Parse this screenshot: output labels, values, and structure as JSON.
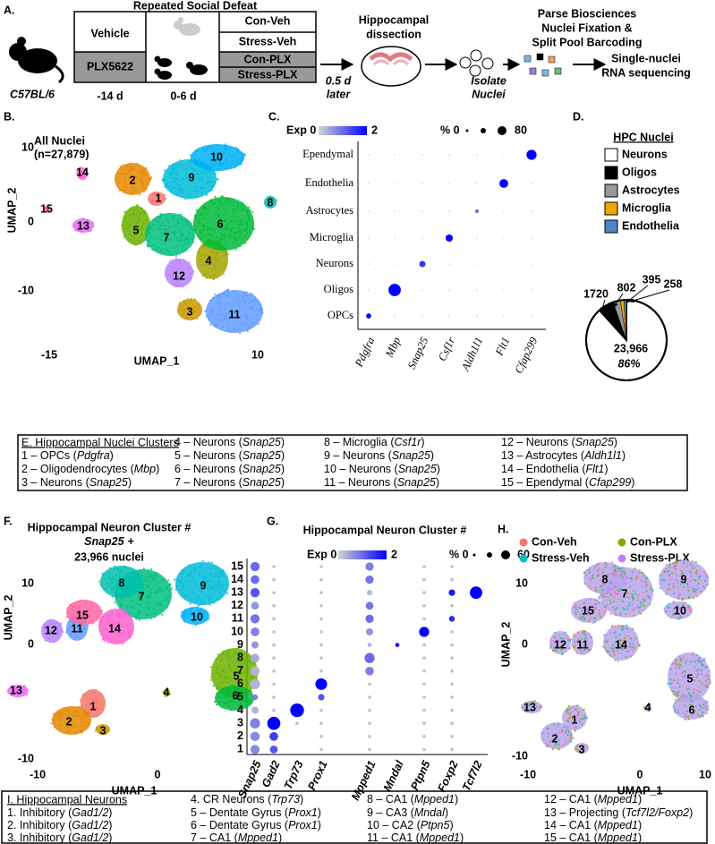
{
  "panel_a": {
    "label": "A.",
    "strain": "C57BL/6",
    "title": "Repeated Social Defeat",
    "treatments": [
      "Vehicle",
      "PLX5622"
    ],
    "groups": [
      "Con-Veh",
      "Stress-Veh",
      "Con-PLX",
      "Stress-PLX"
    ],
    "timepoints": [
      "-14 d",
      "0-6 d"
    ],
    "delay": [
      "0.5 d",
      "later"
    ],
    "dissection": [
      "Hippocampal",
      "dissection"
    ],
    "isolate": [
      "Isolate",
      "Nuclei"
    ],
    "parse": [
      "Parse Biosciences",
      "Nuclei Fixation &",
      "Split Pool Barcoding"
    ],
    "sequencing": [
      "Single-nuclei",
      "RNA sequencing"
    ]
  },
  "panel_b": {
    "label": "B.",
    "title": [
      "All Nuclei",
      "(n=27,879)"
    ],
    "x_label": "UMAP_1",
    "y_label": "UMAP_2",
    "xticks": [
      "-15",
      "10"
    ],
    "yticks": [
      "10",
      "0",
      "-10"
    ],
    "clusters": [
      "1",
      "2",
      "3",
      "4",
      "5",
      "6",
      "7",
      "8",
      "9",
      "10",
      "11",
      "12",
      "13",
      "14",
      "15"
    ]
  },
  "panel_c": {
    "label": "C.",
    "legend_exp": [
      "Exp 0",
      "2"
    ],
    "legend_pct": [
      "% 0",
      "80"
    ],
    "cell_types": [
      "Ependymal",
      "Endothelia",
      "Astrocytes",
      "Microglia",
      "Neurons",
      "Oligos",
      "OPCs"
    ],
    "genes": [
      "Pdgfra",
      "Mbp",
      "Snap25",
      "Csf1r",
      "Aldh1l1",
      "Flt1",
      "Cfap299"
    ],
    "pct": [
      10,
      60,
      15,
      20,
      5,
      30,
      40
    ],
    "exp": [
      2,
      2,
      1.5,
      2,
      1,
      2,
      2
    ]
  },
  "panel_d": {
    "label": "D.",
    "title": "HPC Nuclei",
    "categories": [
      "Neurons",
      "Oligos",
      "Astrocytes",
      "Microglia",
      "Endothelia"
    ],
    "colors": [
      "#ffffff",
      "#000000",
      "#999999",
      "#f0a800",
      "#4a86c8"
    ],
    "values": [
      23966,
      1720,
      802,
      395,
      258
    ],
    "value_labels": [
      "23,966",
      "1720",
      "802",
      "395",
      "258"
    ],
    "neuron_percent": "86%"
  },
  "panel_e": {
    "title": "E. Hippocampal Nuclei Clusters",
    "items": [
      [
        "1 – OPCs (",
        "Pdgfra",
        ")"
      ],
      [
        "2 – Oligodendrocytes (",
        "Mbp",
        ")"
      ],
      [
        "3 – Neurons (",
        "Snap25",
        ")"
      ],
      [
        "4 – Neurons (",
        "Snap25",
        ")"
      ],
      [
        "5 – Neurons (",
        "Snap25",
        ")"
      ],
      [
        "6 – Neurons (",
        "Snap25",
        ")"
      ],
      [
        "7 – Neurons (",
        "Snap25",
        ")"
      ],
      [
        "8 – Microglia (",
        "Csf1r",
        ")"
      ],
      [
        "9 – Neurons (",
        "Snap25",
        ")"
      ],
      [
        "10 – Neurons (",
        "Snap25",
        ")"
      ],
      [
        "11 – Neurons (",
        "Snap25",
        ")"
      ],
      [
        "12 – Neurons (",
        "Snap25",
        ")"
      ],
      [
        "13 – Astrocytes (",
        "Aldh1l1",
        ")"
      ],
      [
        "14 – Endothelia (",
        "Flt1",
        ")"
      ],
      [
        "15 – Ependymal (",
        "Cfap299",
        ")"
      ]
    ]
  },
  "panel_f": {
    "label": "F.",
    "title": "Hippocampal Neuron Cluster #",
    "gene": "Snap25",
    "plus": "+",
    "nuclei": "23,966 nuclei",
    "x_label": "UMAP_1",
    "y_label": "UMAP_2",
    "xticks": [
      "-10",
      "0"
    ],
    "yticks": [
      "10",
      "0",
      "-10"
    ],
    "clusters": [
      "1",
      "2",
      "3",
      "4",
      "5",
      "6",
      "7",
      "8",
      "9",
      "10",
      "11",
      "12",
      "13",
      "14",
      "15"
    ]
  },
  "panel_g": {
    "label": "G.",
    "title": "Hippocampal Neuron Cluster #",
    "legend_exp": [
      "Exp 0",
      "2"
    ],
    "legend_pct": [
      "% 0",
      "60"
    ],
    "clusters": [
      "15",
      "14",
      "13",
      "12",
      "11",
      "10",
      "9",
      "8",
      "7",
      "6",
      "5",
      "4",
      "3",
      "2",
      "1"
    ],
    "genes": [
      "Snap25",
      "Gad2",
      "Trp73",
      "Prox1",
      "Mpped1",
      "Mndal",
      "Ptpn5",
      "Foxp2",
      "Tcf7l2"
    ],
    "pct": [
      [
        25,
        3,
        0,
        3,
        20,
        0,
        3,
        3,
        0
      ],
      [
        22,
        3,
        0,
        3,
        20,
        0,
        3,
        3,
        0
      ],
      [
        25,
        3,
        0,
        3,
        8,
        0,
        3,
        12,
        45
      ],
      [
        18,
        3,
        0,
        3,
        18,
        0,
        3,
        3,
        0
      ],
      [
        25,
        3,
        0,
        3,
        20,
        0,
        3,
        10,
        0
      ],
      [
        22,
        3,
        0,
        3,
        15,
        0,
        30,
        3,
        0
      ],
      [
        15,
        3,
        0,
        3,
        5,
        5,
        3,
        3,
        0
      ],
      [
        22,
        3,
        0,
        3,
        30,
        0,
        3,
        3,
        0
      ],
      [
        25,
        3,
        0,
        3,
        22,
        0,
        3,
        3,
        0
      ],
      [
        30,
        3,
        0,
        40,
        3,
        0,
        3,
        3,
        0
      ],
      [
        10,
        3,
        0,
        12,
        3,
        0,
        3,
        3,
        0
      ],
      [
        15,
        3,
        55,
        3,
        3,
        0,
        3,
        3,
        0
      ],
      [
        30,
        50,
        3,
        3,
        3,
        0,
        3,
        3,
        0
      ],
      [
        25,
        22,
        0,
        3,
        3,
        0,
        3,
        3,
        0
      ],
      [
        25,
        18,
        0,
        3,
        3,
        0,
        3,
        3,
        0
      ]
    ],
    "exp": [
      [
        1.0,
        0.2,
        0,
        0.2,
        0.8,
        0,
        0.2,
        0.2,
        0
      ],
      [
        1.0,
        0.2,
        0,
        0.2,
        0.9,
        0,
        0.2,
        0.2,
        0
      ],
      [
        1.2,
        0.2,
        0,
        0.2,
        0.3,
        0,
        0.2,
        1.8,
        2.0
      ],
      [
        0.6,
        0.2,
        0,
        0.2,
        0.9,
        0,
        0.2,
        0.2,
        0
      ],
      [
        0.9,
        0.2,
        0,
        0.2,
        1.0,
        0,
        0.2,
        1.6,
        0
      ],
      [
        0.8,
        0.2,
        0,
        0.2,
        0.6,
        0,
        2.0,
        0.2,
        0
      ],
      [
        0.6,
        0.2,
        0,
        0.2,
        0.3,
        1.9,
        0.2,
        0.2,
        0
      ],
      [
        0.4,
        0.2,
        0,
        0.2,
        1.0,
        0,
        0.2,
        0.2,
        0
      ],
      [
        0.3,
        0.2,
        0,
        0.2,
        0.8,
        0,
        0.2,
        0.2,
        0
      ],
      [
        0.3,
        0.2,
        0,
        2.0,
        0.2,
        0,
        0.2,
        0.2,
        0
      ],
      [
        0.8,
        0.2,
        0,
        1.2,
        0.2,
        0,
        0.2,
        0.2,
        0
      ],
      [
        0.3,
        0.2,
        2.0,
        0.2,
        0.2,
        0,
        0.2,
        0.2,
        0
      ],
      [
        0.8,
        2.0,
        0.2,
        0.2,
        0.2,
        0,
        0.2,
        0.2,
        0
      ],
      [
        0.7,
        1.4,
        0,
        0.2,
        0.2,
        0,
        0.2,
        0.2,
        0
      ],
      [
        0.7,
        1.2,
        0,
        0.2,
        0.2,
        0,
        0.2,
        0.2,
        0
      ]
    ]
  },
  "panel_h": {
    "label": "H.",
    "groups": [
      "Con-Veh",
      "Con-PLX",
      "Stress-Veh",
      "Stress-PLX"
    ],
    "group_colors": [
      "#F8766D",
      "#7CAE00",
      "#00BFC4",
      "#C77CFF"
    ],
    "x_label": "UMAP_1",
    "y_label": "UMAP_2",
    "xticks": [
      "-10",
      "0",
      "10"
    ],
    "yticks": [
      "10",
      "0",
      "-10"
    ],
    "clusters": [
      "1",
      "2",
      "3",
      "4",
      "5",
      "6",
      "7",
      "8",
      "9",
      "10",
      "11",
      "12",
      "13",
      "14",
      "15"
    ]
  },
  "panel_i": {
    "title": "I. Hippocampal Neurons",
    "items": [
      [
        "1. Inhibitory (",
        "Gad1/2",
        ")"
      ],
      [
        "2. Inhibitory (",
        "Gad1/2",
        ")"
      ],
      [
        "3. Inhibitory (",
        "Gad1/2",
        ")"
      ],
      [
        "4. CR Neurons (",
        "Trp73",
        ")"
      ],
      [
        "5 – Dentate Gyrus (",
        "Prox1",
        ")"
      ],
      [
        "6 – Dentate Gyrus (",
        "Prox1",
        ")"
      ],
      [
        "7 – CA1 (",
        "Mpped1",
        ")"
      ],
      [
        "8 – CA1 (",
        "Mpped1",
        ")"
      ],
      [
        "9 – CA3 (",
        "Mndal",
        ")"
      ],
      [
        "10 – CA2 (",
        "Ptpn5",
        ")"
      ],
      [
        "11 – CA1 (",
        "Mpped1",
        ")"
      ],
      [
        "12 – CA1 (",
        "Mpped1",
        ")"
      ],
      [
        "13 – Projecting (",
        "Tcf7l2/Foxp2",
        ")"
      ],
      [
        "14 – CA1 (",
        "Mpped1",
        ")"
      ],
      [
        "15 – CA1 (",
        "Mpped1",
        ")"
      ]
    ]
  }
}
